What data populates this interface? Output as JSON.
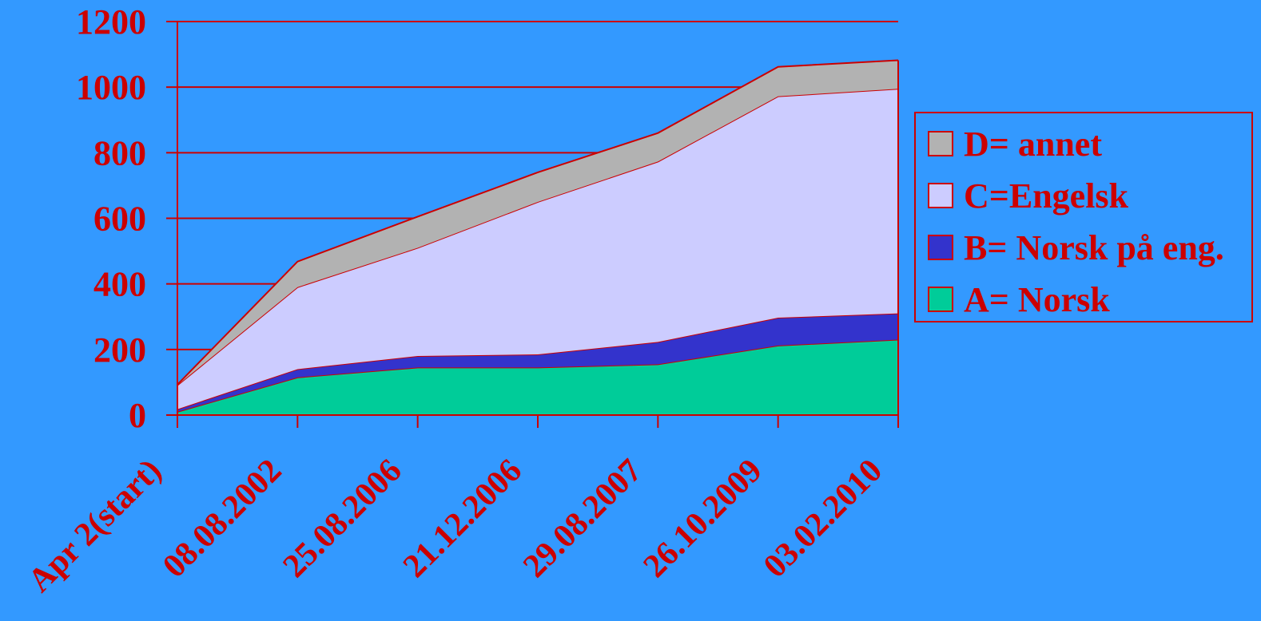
{
  "chart_data": {
    "type": "area",
    "stacked": true,
    "categories": [
      "Apr 2(start)",
      "08.08.2002",
      "25.08.2006",
      "21.12.2006",
      "29.08.2007",
      "26.10.2009",
      "03.02.2010"
    ],
    "series": [
      {
        "name": "A= Norsk",
        "color": "#00CC99",
        "values": [
          10,
          115,
          145,
          145,
          155,
          212,
          230
        ]
      },
      {
        "name": "B= Norsk på eng.",
        "color": "#3333CC",
        "values": [
          8,
          25,
          35,
          40,
          68,
          85,
          80
        ]
      },
      {
        "name": "C=Engelsk",
        "color": "#CCCCFF",
        "values": [
          73,
          250,
          330,
          465,
          550,
          675,
          685
        ]
      },
      {
        "name": "D= annet",
        "color": "#B2B2B2",
        "values": [
          2,
          78,
          95,
          90,
          87,
          90,
          87
        ]
      }
    ],
    "ylim": [
      0,
      1200
    ],
    "yticks": [
      0,
      200,
      400,
      600,
      800,
      1000,
      1200
    ],
    "grid": true,
    "legend_position": "right",
    "colors": {
      "background": "#3399FF",
      "text": "#CC0000",
      "lines": "#CC0000"
    }
  }
}
